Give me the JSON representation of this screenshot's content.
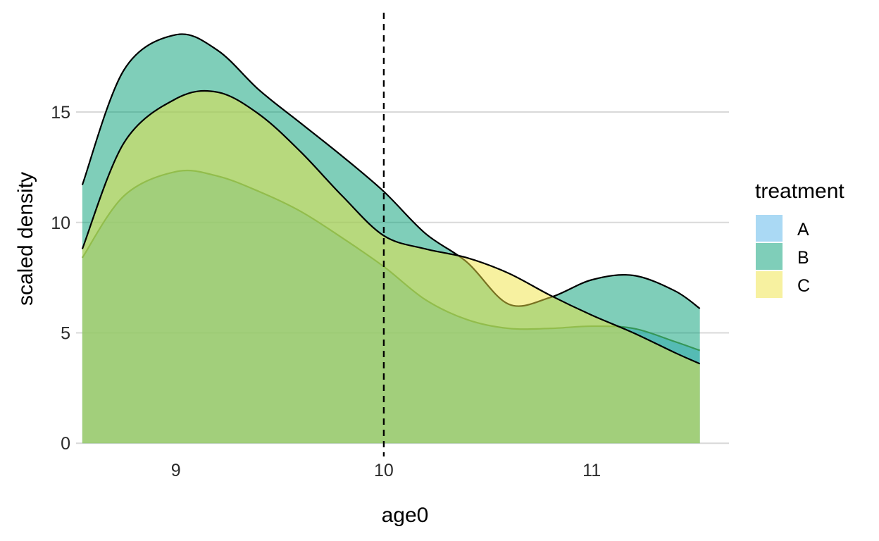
{
  "chart_data": {
    "type": "area",
    "subtype": "density",
    "xlabel": "age0",
    "ylabel": "scaled density",
    "xlim": [
      8.52,
      11.66
    ],
    "ylim": [
      -0.6,
      19.5
    ],
    "x_ticks": [
      9,
      10,
      11
    ],
    "y_ticks": [
      0,
      5,
      10,
      15
    ],
    "grid": "horizontal major only",
    "reference_line": {
      "x": 10,
      "style": "dashed",
      "color": "#000000"
    },
    "legend": {
      "title": "treatment",
      "position": "right",
      "entries": [
        {
          "label": "A",
          "color": "#56B4E9"
        },
        {
          "label": "B",
          "color": "#009E73"
        },
        {
          "label": "C",
          "color": "#F0E442"
        }
      ]
    },
    "x": [
      8.55,
      8.75,
      9.0,
      9.2,
      9.4,
      9.6,
      9.8,
      10.0,
      10.2,
      10.4,
      10.6,
      10.8,
      11.0,
      11.2,
      11.4,
      11.52
    ],
    "series": [
      {
        "name": "A",
        "color": "#56B4E9",
        "outline": "#6b8f3a",
        "values": [
          8.4,
          11.2,
          12.3,
          12.1,
          11.4,
          10.5,
          9.3,
          8.0,
          6.5,
          5.6,
          5.2,
          5.2,
          5.3,
          5.2,
          4.6,
          4.2
        ]
      },
      {
        "name": "B",
        "color": "#009E73",
        "outline": "#000000",
        "values": [
          11.7,
          16.9,
          18.5,
          17.8,
          16.0,
          14.5,
          13.0,
          11.4,
          9.5,
          8.2,
          6.3,
          6.6,
          7.4,
          7.6,
          6.9,
          6.1
        ]
      },
      {
        "name": "C",
        "color": "#F0E442",
        "outline": "#000000",
        "values": [
          8.8,
          13.6,
          15.6,
          15.9,
          14.9,
          13.2,
          11.2,
          9.4,
          8.8,
          8.4,
          7.7,
          6.7,
          5.8,
          5.0,
          4.1,
          3.6
        ]
      }
    ]
  }
}
